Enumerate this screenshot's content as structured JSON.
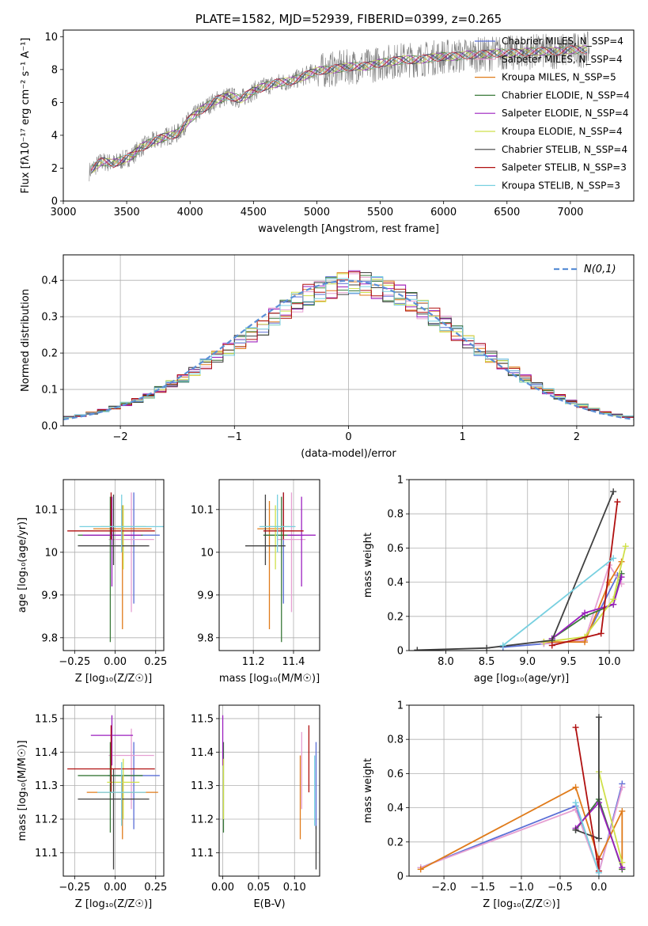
{
  "chart_data": [
    {
      "id": "spectrum",
      "type": "line",
      "title": "PLATE=1582, MJD=52939, FIBERID=0399, z=0.265",
      "xlabel": "wavelength [Angstrom, rest frame]",
      "ylabel": "Flux [fλ10⁻¹⁷ erg cm⁻² s⁻¹ A⁻¹]",
      "xlim": [
        3000,
        7500
      ],
      "ylim": [
        0,
        10.4
      ],
      "xticks": [
        3000,
        3500,
        4000,
        4500,
        5000,
        5500,
        6000,
        6500,
        7000
      ],
      "yticks": [
        0,
        2,
        4,
        6,
        8,
        10
      ],
      "grid": false,
      "legend_position": "upper-right",
      "data_color": "#808080",
      "data_x": [
        3205,
        3250,
        3300,
        3400,
        3500,
        3550,
        3600,
        3700,
        3800,
        3900,
        4000,
        4100,
        4200,
        4300,
        4400,
        4500,
        4600,
        4700,
        4800,
        4900,
        5000,
        5100,
        5200,
        5300,
        5400,
        5500,
        5600,
        5700,
        5800,
        5900,
        6000,
        6100,
        6200,
        6300,
        6400,
        6500,
        6600,
        6700,
        6800,
        6900,
        7000,
        7100,
        7150
      ],
      "data_y": [
        1.8,
        2.1,
        2.4,
        2.3,
        2.6,
        2.8,
        3.2,
        3.6,
        3.9,
        4.1,
        5.0,
        5.6,
        6.1,
        6.4,
        6.2,
        6.7,
        7.0,
        7.2,
        7.3,
        7.6,
        7.9,
        8.0,
        8.1,
        8.2,
        8.2,
        8.4,
        8.5,
        8.6,
        8.6,
        8.7,
        8.8,
        8.8,
        8.9,
        8.9,
        9.0,
        9.0,
        9.0,
        9.1,
        9.1,
        9.1,
        9.2,
        9.2,
        9.2
      ],
      "series": [
        {
          "name": "Chabrier MILES, N_SSP=4",
          "color": "#5a6fd6"
        },
        {
          "name": "Salpeter MILES, N_SSP=4",
          "color": "#e6a0d2"
        },
        {
          "name": "Kroupa MILES, N_SSP=5",
          "color": "#e07b1a"
        },
        {
          "name": "Chabrier ELODIE, N_SSP=4",
          "color": "#3a7a3a"
        },
        {
          "name": "Salpeter ELODIE, N_SSP=4",
          "color": "#9b1fbf"
        },
        {
          "name": "Kroupa ELODIE, N_SSP=4",
          "color": "#cfe04a"
        },
        {
          "name": "Chabrier STELIB, N_SSP=4",
          "color": "#404040"
        },
        {
          "name": "Salpeter STELIB, N_SSP=3",
          "color": "#b01010"
        },
        {
          "name": "Kroupa STELIB, N_SSP=3",
          "color": "#78d0e0"
        }
      ]
    },
    {
      "id": "residuals",
      "type": "line",
      "xlabel": "(data-model)/error",
      "ylabel": "Normed distribution",
      "xlim": [
        -2.5,
        2.5
      ],
      "ylim": [
        0,
        0.47
      ],
      "xticks": [
        -2,
        -1,
        0,
        1,
        2
      ],
      "yticks": [
        0.0,
        0.1,
        0.2,
        0.3,
        0.4
      ],
      "grid": true,
      "legend_position": "upper-right",
      "reference_curve": {
        "name": "N(0,1)",
        "color": "#5b8fd6",
        "dashed": true
      },
      "bin_width": 0.1,
      "bin_start": -2.5,
      "hist_values": [
        0.024,
        0.028,
        0.035,
        0.042,
        0.05,
        0.06,
        0.07,
        0.082,
        0.1,
        0.115,
        0.13,
        0.15,
        0.17,
        0.19,
        0.21,
        0.23,
        0.25,
        0.27,
        0.3,
        0.32,
        0.34,
        0.36,
        0.37,
        0.38,
        0.39,
        0.395,
        0.39,
        0.38,
        0.37,
        0.36,
        0.34,
        0.32,
        0.3,
        0.28,
        0.255,
        0.23,
        0.21,
        0.19,
        0.17,
        0.15,
        0.13,
        0.11,
        0.095,
        0.08,
        0.066,
        0.055,
        0.045,
        0.036,
        0.03,
        0.025
      ]
    },
    {
      "id": "age-vs-z",
      "type": "scatter",
      "xlabel": "Z [log₁₀(Z/Z☉)]",
      "ylabel": "age  [log₁₀(age/yr)]",
      "xlim": [
        -0.32,
        0.3
      ],
      "ylim": [
        9.77,
        10.17
      ],
      "xticks": [
        -0.25,
        0.0,
        0.25
      ],
      "xticklabels": [
        "−0.25",
        "0.00",
        "0.25"
      ],
      "yticks": [
        9.8,
        9.9,
        10.0,
        10.1
      ],
      "grid": true,
      "points": [
        {
          "x": 0.115,
          "y": 10.04,
          "xerr": 0.16,
          "ylo": 9.88,
          "yhi": 10.14,
          "color": "#5a6fd6"
        },
        {
          "x": 0.1,
          "y": 10.03,
          "xerr": 0.14,
          "ylo": 9.86,
          "yhi": 10.14,
          "color": "#e6a0d2"
        },
        {
          "x": 0.045,
          "y": 10.055,
          "xerr": 0.18,
          "ylo": 9.82,
          "yhi": 10.11,
          "color": "#e07b1a"
        },
        {
          "x": -0.03,
          "y": 10.04,
          "xerr": 0.2,
          "ylo": 9.79,
          "yhi": 10.13,
          "color": "#3a7a3a"
        },
        {
          "x": -0.02,
          "y": 10.04,
          "xerr": 0.18,
          "ylo": 9.92,
          "yhi": 10.13,
          "color": "#9b1fbf"
        },
        {
          "x": 0.05,
          "y": 10.06,
          "xerr": 0.14,
          "ylo": 9.96,
          "yhi": 10.11,
          "color": "#cfe04a"
        },
        {
          "x": -0.01,
          "y": 10.015,
          "xerr": 0.22,
          "ylo": 9.97,
          "yhi": 10.135,
          "color": "#404040"
        },
        {
          "x": -0.025,
          "y": 10.05,
          "xerr": 0.27,
          "ylo": 10.03,
          "yhi": 10.14,
          "color": "#b01010"
        },
        {
          "x": 0.04,
          "y": 10.06,
          "xerr": 0.26,
          "ylo": 10.0,
          "yhi": 10.135,
          "color": "#78d0e0"
        }
      ]
    },
    {
      "id": "age-vs-mass",
      "type": "scatter",
      "xlabel": "mass [log₁₀(M/M☉)]",
      "xlim": [
        11.03,
        11.53
      ],
      "ylim": [
        9.77,
        10.17
      ],
      "xticks": [
        11.2,
        11.4
      ],
      "xticklabels": [
        "11.2",
        "11.4"
      ],
      "yticks": [
        9.8,
        9.9,
        10.0,
        10.1
      ],
      "grid": true,
      "points": [
        {
          "x": 11.35,
          "y": 10.04,
          "xerr": 0.1,
          "ylo": 9.88,
          "yhi": 10.14,
          "color": "#5a6fd6"
        },
        {
          "x": 11.39,
          "y": 10.03,
          "xerr": 0.07,
          "ylo": 9.86,
          "yhi": 10.14,
          "color": "#e6a0d2"
        },
        {
          "x": 11.28,
          "y": 10.055,
          "xerr": 0.06,
          "ylo": 9.82,
          "yhi": 10.12,
          "color": "#e07b1a"
        },
        {
          "x": 11.34,
          "y": 10.04,
          "xerr": 0.09,
          "ylo": 9.79,
          "yhi": 10.13,
          "color": "#3a7a3a"
        },
        {
          "x": 11.44,
          "y": 10.04,
          "xerr": 0.07,
          "ylo": 9.92,
          "yhi": 10.13,
          "color": "#9b1fbf"
        },
        {
          "x": 11.31,
          "y": 10.06,
          "xerr": 0.07,
          "ylo": 9.96,
          "yhi": 10.11,
          "color": "#cfe04a"
        },
        {
          "x": 11.26,
          "y": 10.015,
          "xerr": 0.1,
          "ylo": 9.97,
          "yhi": 10.135,
          "color": "#404040"
        },
        {
          "x": 11.35,
          "y": 10.05,
          "xerr": 0.1,
          "ylo": 10.03,
          "yhi": 10.14,
          "color": "#b01010"
        },
        {
          "x": 11.32,
          "y": 10.06,
          "xerr": 0.09,
          "ylo": 10.0,
          "yhi": 10.135,
          "color": "#78d0e0"
        }
      ]
    },
    {
      "id": "weight-vs-age",
      "type": "line",
      "xlabel": "age  [log₁₀(age/yr)]",
      "ylabel": "mass weight",
      "xlim": [
        7.55,
        10.3
      ],
      "ylim": [
        0,
        1.0
      ],
      "xticks": [
        8.0,
        8.5,
        9.0,
        9.5,
        10.0
      ],
      "xticklabels": [
        "8.0",
        "8.5",
        "9.0",
        "9.5",
        "10.0"
      ],
      "yticks": [
        0.0,
        0.2,
        0.4,
        0.6,
        0.8,
        1.0
      ],
      "grid": true,
      "series": [
        {
          "color": "#5a6fd6",
          "x": [
            8.7,
            9.2,
            9.7,
            10.1
          ],
          "y": [
            0.02,
            0.04,
            0.06,
            0.44
          ]
        },
        {
          "color": "#e6a0d2",
          "x": [
            9.2,
            9.7,
            10.0,
            10.15
          ],
          "y": [
            0.04,
            0.06,
            0.5,
            0.39
          ]
        },
        {
          "color": "#e07b1a",
          "x": [
            9.2,
            9.7,
            10.0,
            10.15
          ],
          "y": [
            0.05,
            0.05,
            0.4,
            0.52
          ]
        },
        {
          "color": "#3a7a3a",
          "x": [
            9.3,
            9.7,
            10.05,
            10.15
          ],
          "y": [
            0.07,
            0.2,
            0.27,
            0.45
          ]
        },
        {
          "color": "#9b1fbf",
          "x": [
            9.3,
            9.7,
            10.05,
            10.15
          ],
          "y": [
            0.07,
            0.22,
            0.27,
            0.43
          ]
        },
        {
          "color": "#cfe04a",
          "x": [
            9.2,
            9.7,
            10.05,
            10.2
          ],
          "y": [
            0.05,
            0.08,
            0.3,
            0.61
          ]
        },
        {
          "color": "#404040",
          "x": [
            7.65,
            8.5,
            9.3,
            10.05
          ],
          "y": [
            0.003,
            0.015,
            0.06,
            0.93
          ]
        },
        {
          "color": "#b01010",
          "x": [
            9.3,
            9.9,
            10.1
          ],
          "y": [
            0.03,
            0.1,
            0.87
          ]
        },
        {
          "color": "#78d0e0",
          "x": [
            8.7,
            10.05
          ],
          "y": [
            0.03,
            0.54
          ]
        }
      ]
    },
    {
      "id": "mass-vs-z",
      "type": "scatter",
      "xlabel": "Z [log₁₀(Z/Z☉)]",
      "ylabel": "mass [log₁₀(M/M☉)]",
      "xlim": [
        -0.32,
        0.3
      ],
      "ylim": [
        11.03,
        11.54
      ],
      "xticks": [
        -0.25,
        0.0,
        0.25
      ],
      "xticklabels": [
        "−0.25",
        "0.00",
        "0.25"
      ],
      "yticks": [
        11.1,
        11.2,
        11.3,
        11.4,
        11.5
      ],
      "grid": true,
      "points": [
        {
          "x": 0.115,
          "y": 11.33,
          "xerr": 0.16,
          "ylo": 11.17,
          "yhi": 11.43,
          "color": "#5a6fd6"
        },
        {
          "x": 0.1,
          "y": 11.39,
          "xerr": 0.14,
          "ylo": 11.23,
          "yhi": 11.47,
          "color": "#e6a0d2"
        },
        {
          "x": 0.045,
          "y": 11.28,
          "xerr": 0.22,
          "ylo": 11.14,
          "yhi": 11.33,
          "color": "#e07b1a"
        },
        {
          "x": -0.03,
          "y": 11.33,
          "xerr": 0.2,
          "ylo": 11.16,
          "yhi": 11.43,
          "color": "#3a7a3a"
        },
        {
          "x": -0.02,
          "y": 11.45,
          "xerr": 0.13,
          "ylo": 11.36,
          "yhi": 11.51,
          "color": "#9b1fbf"
        },
        {
          "x": 0.05,
          "y": 11.31,
          "xerr": 0.1,
          "ylo": 11.2,
          "yhi": 11.38,
          "color": "#cfe04a"
        },
        {
          "x": -0.01,
          "y": 11.26,
          "xerr": 0.22,
          "ylo": 11.05,
          "yhi": 11.35,
          "color": "#404040"
        },
        {
          "x": -0.025,
          "y": 11.35,
          "xerr": 0.27,
          "ylo": 11.28,
          "yhi": 11.48,
          "color": "#b01010"
        },
        {
          "x": 0.04,
          "y": 11.28,
          "xerr": 0.15,
          "ylo": 11.18,
          "yhi": 11.37,
          "color": "#78d0e0"
        }
      ]
    },
    {
      "id": "mass-vs-ebv",
      "type": "scatter",
      "xlabel": "E(B-V)",
      "xlim": [
        -0.005,
        0.135
      ],
      "ylim": [
        11.03,
        11.54
      ],
      "xticks": [
        0.0,
        0.05,
        0.1
      ],
      "xticklabels": [
        "0.00",
        "0.05",
        "0.10"
      ],
      "yticks": [
        11.1,
        11.2,
        11.3,
        11.4,
        11.5
      ],
      "grid": true,
      "points": [
        {
          "x": 0.13,
          "y": 11.33,
          "xerr": 0,
          "ylo": 11.17,
          "yhi": 11.43,
          "color": "#5a6fd6"
        },
        {
          "x": 0.11,
          "y": 11.39,
          "xerr": 0,
          "ylo": 11.23,
          "yhi": 11.46,
          "color": "#e6a0d2"
        },
        {
          "x": 0.108,
          "y": 11.28,
          "xerr": 0,
          "ylo": 11.14,
          "yhi": 11.39,
          "color": "#e07b1a"
        },
        {
          "x": 0.001,
          "y": 11.33,
          "xerr": 0,
          "ylo": 11.16,
          "yhi": 11.43,
          "color": "#3a7a3a"
        },
        {
          "x": 0.0,
          "y": 11.45,
          "xerr": 0,
          "ylo": 11.36,
          "yhi": 11.51,
          "color": "#9b1fbf"
        },
        {
          "x": 0.001,
          "y": 11.31,
          "xerr": 0,
          "ylo": 11.2,
          "yhi": 11.38,
          "color": "#cfe04a"
        },
        {
          "x": 0.13,
          "y": 11.26,
          "xerr": 0,
          "ylo": 11.05,
          "yhi": 11.18,
          "color": "#404040"
        },
        {
          "x": 0.12,
          "y": 11.35,
          "xerr": 0,
          "ylo": 11.28,
          "yhi": 11.48,
          "color": "#b01010"
        },
        {
          "x": 0.128,
          "y": 11.28,
          "xerr": 0,
          "ylo": 11.18,
          "yhi": 11.39,
          "color": "#78d0e0"
        }
      ]
    },
    {
      "id": "weight-vs-z",
      "type": "line",
      "xlabel": "Z [log₁₀(Z/Z☉)]",
      "ylabel": "mass weight",
      "xlim": [
        -2.45,
        0.45
      ],
      "ylim": [
        0,
        1.0
      ],
      "xticks": [
        -2.0,
        -1.5,
        -1.0,
        -0.5,
        0.0
      ],
      "xticklabels": [
        "−2.0",
        "−1.5",
        "−1.0",
        "−0.5",
        "0.0"
      ],
      "yticks": [
        0.0,
        0.2,
        0.4,
        0.6,
        0.8,
        1.0
      ],
      "grid": true,
      "series": [
        {
          "color": "#5a6fd6",
          "x": [
            -2.3,
            -0.3,
            0.0,
            0.3
          ],
          "y": [
            0.05,
            0.41,
            0.02,
            0.54
          ]
        },
        {
          "color": "#e6a0d2",
          "x": [
            -2.3,
            -0.3,
            0.0,
            0.3
          ],
          "y": [
            0.05,
            0.39,
            0.02,
            0.52
          ]
        },
        {
          "color": "#e07b1a",
          "x": [
            -2.3,
            -0.3,
            0.0,
            0.3,
            0.3
          ],
          "y": [
            0.04,
            0.52,
            0.1,
            0.38,
            0.04
          ]
        },
        {
          "color": "#3a7a3a",
          "x": [
            -0.3,
            0.0,
            0.3
          ],
          "y": [
            0.27,
            0.45,
            0.04
          ]
        },
        {
          "color": "#9b1fbf",
          "x": [
            -0.3,
            0.0,
            0.3
          ],
          "y": [
            0.28,
            0.43,
            0.05
          ]
        },
        {
          "color": "#cfe04a",
          "x": [
            0.0,
            0.3
          ],
          "y": [
            0.61,
            0.08
          ]
        },
        {
          "color": "#404040",
          "x": [
            -0.3,
            0.0,
            0.0
          ],
          "y": [
            0.27,
            0.22,
            0.93
          ]
        },
        {
          "color": "#b01010",
          "x": [
            -0.3,
            0.0,
            0.0
          ],
          "y": [
            0.87,
            0.03,
            0.1
          ]
        },
        {
          "color": "#78d0e0",
          "x": [
            -0.3,
            0.0
          ],
          "y": [
            0.43,
            0.02
          ]
        }
      ]
    }
  ]
}
